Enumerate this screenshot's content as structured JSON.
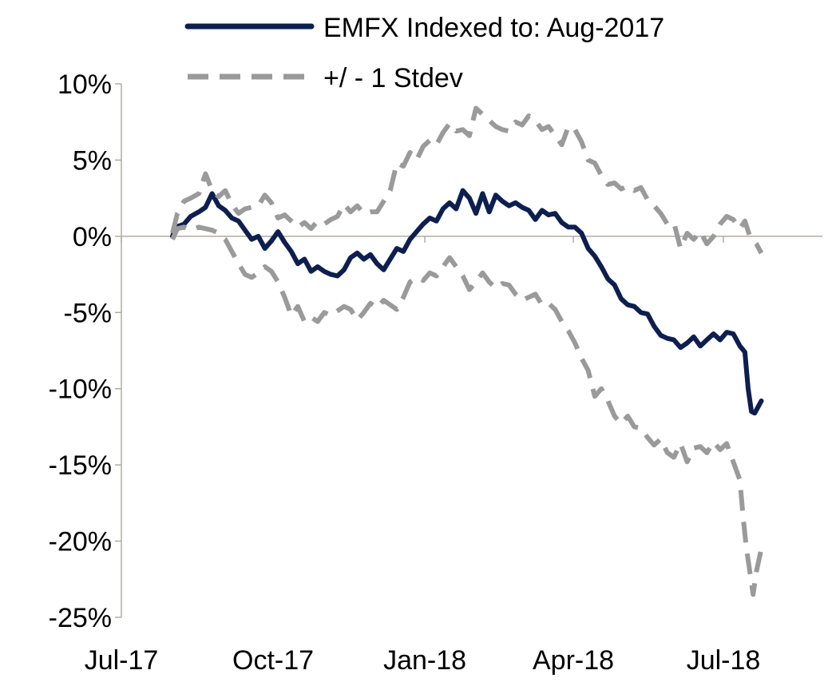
{
  "chart_data": {
    "type": "line",
    "title": "",
    "xlabel": "",
    "ylabel": "",
    "x_ticks": [
      "Jul-17",
      "Oct-17",
      "Jan-18",
      "Apr-18",
      "Jul-18"
    ],
    "y_ticks": [
      "10%",
      "5%",
      "0%",
      "-5%",
      "-10%",
      "-15%",
      "-20%",
      "-25%"
    ],
    "ylim": [
      -25,
      10
    ],
    "grid": false,
    "legend_position": "top",
    "series": [
      {
        "name": "EMFX Indexed to: Aug-2017",
        "style": "solid",
        "color": "#0d1f4f",
        "unit": "percent",
        "points": [
          [
            "2017-08-01",
            0.0
          ],
          [
            "2017-08-03",
            0.6
          ],
          [
            "2017-08-08",
            0.8
          ],
          [
            "2017-08-12",
            1.3
          ],
          [
            "2017-08-17",
            1.6
          ],
          [
            "2017-08-21",
            1.9
          ],
          [
            "2017-08-25",
            2.8
          ],
          [
            "2017-08-29",
            2.0
          ],
          [
            "2017-09-02",
            1.7
          ],
          [
            "2017-09-06",
            1.2
          ],
          [
            "2017-09-10",
            1.0
          ],
          [
            "2017-09-14",
            0.4
          ],
          [
            "2017-09-18",
            -0.2
          ],
          [
            "2017-09-22",
            0.0
          ],
          [
            "2017-09-26",
            -0.8
          ],
          [
            "2017-09-30",
            -0.3
          ],
          [
            "2017-10-04",
            0.3
          ],
          [
            "2017-10-08",
            -0.4
          ],
          [
            "2017-10-12",
            -1.0
          ],
          [
            "2017-10-16",
            -1.8
          ],
          [
            "2017-10-20",
            -1.5
          ],
          [
            "2017-10-24",
            -2.3
          ],
          [
            "2017-10-28",
            -2.0
          ],
          [
            "2017-11-01",
            -2.3
          ],
          [
            "2017-11-05",
            -2.5
          ],
          [
            "2017-11-09",
            -2.6
          ],
          [
            "2017-11-13",
            -2.2
          ],
          [
            "2017-11-17",
            -1.4
          ],
          [
            "2017-11-21",
            -1.1
          ],
          [
            "2017-11-25",
            -1.5
          ],
          [
            "2017-11-29",
            -1.2
          ],
          [
            "2017-12-03",
            -1.8
          ],
          [
            "2017-12-07",
            -2.2
          ],
          [
            "2017-12-11",
            -1.5
          ],
          [
            "2017-12-15",
            -0.8
          ],
          [
            "2017-12-19",
            -1.0
          ],
          [
            "2017-12-23",
            -0.2
          ],
          [
            "2017-12-27",
            0.3
          ],
          [
            "2017-12-31",
            0.8
          ],
          [
            "2018-01-04",
            1.2
          ],
          [
            "2018-01-08",
            1.0
          ],
          [
            "2018-01-12",
            1.8
          ],
          [
            "2018-01-16",
            2.2
          ],
          [
            "2018-01-20",
            1.8
          ],
          [
            "2018-01-24",
            3.0
          ],
          [
            "2018-01-28",
            2.5
          ],
          [
            "2018-02-01",
            1.5
          ],
          [
            "2018-02-05",
            2.8
          ],
          [
            "2018-02-09",
            1.6
          ],
          [
            "2018-02-13",
            2.7
          ],
          [
            "2018-02-17",
            2.3
          ],
          [
            "2018-02-21",
            2.0
          ],
          [
            "2018-02-25",
            2.2
          ],
          [
            "2018-03-01",
            1.9
          ],
          [
            "2018-03-05",
            1.7
          ],
          [
            "2018-03-09",
            1.1
          ],
          [
            "2018-03-13",
            1.7
          ],
          [
            "2018-03-17",
            1.4
          ],
          [
            "2018-03-21",
            1.5
          ],
          [
            "2018-03-25",
            0.9
          ],
          [
            "2018-03-29",
            0.6
          ],
          [
            "2018-04-02",
            0.6
          ],
          [
            "2018-04-06",
            0.2
          ],
          [
            "2018-04-10",
            -0.8
          ],
          [
            "2018-04-14",
            -1.3
          ],
          [
            "2018-04-18",
            -2.0
          ],
          [
            "2018-04-22",
            -2.8
          ],
          [
            "2018-04-26",
            -3.2
          ],
          [
            "2018-04-30",
            -4.1
          ],
          [
            "2018-05-04",
            -4.5
          ],
          [
            "2018-05-08",
            -4.6
          ],
          [
            "2018-05-12",
            -5.0
          ],
          [
            "2018-05-16",
            -5.1
          ],
          [
            "2018-05-20",
            -5.9
          ],
          [
            "2018-05-24",
            -6.5
          ],
          [
            "2018-05-28",
            -6.7
          ],
          [
            "2018-06-01",
            -6.8
          ],
          [
            "2018-06-05",
            -7.3
          ],
          [
            "2018-06-09",
            -7.0
          ],
          [
            "2018-06-13",
            -6.6
          ],
          [
            "2018-06-17",
            -7.2
          ],
          [
            "2018-06-21",
            -6.8
          ],
          [
            "2018-06-25",
            -6.4
          ],
          [
            "2018-06-29",
            -6.8
          ],
          [
            "2018-07-03",
            -6.3
          ],
          [
            "2018-07-07",
            -6.4
          ],
          [
            "2018-07-11",
            -7.2
          ],
          [
            "2018-07-14",
            -7.6
          ],
          [
            "2018-07-16",
            -10.0
          ],
          [
            "2018-07-18",
            -11.5
          ],
          [
            "2018-07-20",
            -11.6
          ],
          [
            "2018-07-22",
            -11.2
          ],
          [
            "2018-07-24",
            -10.8
          ]
        ]
      },
      {
        "name": "+/ - 1 Stdev",
        "style": "dashed",
        "color": "#9a9a9a",
        "unit": "percent",
        "points": [
          [
            "2017-08-01",
            0.2
          ],
          [
            "2017-08-04",
            1.5
          ],
          [
            "2017-08-08",
            2.3
          ],
          [
            "2017-08-12",
            2.5
          ],
          [
            "2017-08-17",
            2.8
          ],
          [
            "2017-08-21",
            4.1
          ],
          [
            "2017-08-25",
            3.0
          ],
          [
            "2017-08-29",
            2.6
          ],
          [
            "2017-09-02",
            3.0
          ],
          [
            "2017-09-06",
            2.1
          ],
          [
            "2017-09-10",
            1.5
          ],
          [
            "2017-09-14",
            1.8
          ],
          [
            "2017-09-18",
            1.9
          ],
          [
            "2017-09-22",
            2.0
          ],
          [
            "2017-09-26",
            2.7
          ],
          [
            "2017-09-30",
            2.2
          ],
          [
            "2017-10-04",
            1.2
          ],
          [
            "2017-10-08",
            1.4
          ],
          [
            "2017-10-12",
            1.0
          ],
          [
            "2017-10-16",
            0.6
          ],
          [
            "2017-10-20",
            0.9
          ],
          [
            "2017-10-24",
            0.5
          ],
          [
            "2017-10-28",
            1.0
          ],
          [
            "2017-11-01",
            0.8
          ],
          [
            "2017-11-05",
            1.1
          ],
          [
            "2017-11-09",
            1.3
          ],
          [
            "2017-11-13",
            2.1
          ],
          [
            "2017-11-17",
            1.6
          ],
          [
            "2017-11-21",
            2.0
          ],
          [
            "2017-11-25",
            1.5
          ],
          [
            "2017-11-29",
            1.6
          ],
          [
            "2017-12-03",
            1.6
          ],
          [
            "2017-12-07",
            2.3
          ],
          [
            "2017-12-11",
            3.0
          ],
          [
            "2017-12-15",
            4.8
          ],
          [
            "2017-12-19",
            4.6
          ],
          [
            "2017-12-23",
            5.5
          ],
          [
            "2017-12-27",
            5.0
          ],
          [
            "2017-12-31",
            5.9
          ],
          [
            "2018-01-04",
            6.3
          ],
          [
            "2018-01-08",
            6.0
          ],
          [
            "2018-01-12",
            6.8
          ],
          [
            "2018-01-16",
            7.4
          ],
          [
            "2018-01-20",
            6.9
          ],
          [
            "2018-01-24",
            7.0
          ],
          [
            "2018-01-28",
            6.6
          ],
          [
            "2018-02-01",
            8.4
          ],
          [
            "2018-02-05",
            8.0
          ],
          [
            "2018-02-09",
            7.6
          ],
          [
            "2018-02-13",
            7.2
          ],
          [
            "2018-02-17",
            7.0
          ],
          [
            "2018-02-21",
            6.9
          ],
          [
            "2018-02-25",
            7.5
          ],
          [
            "2018-03-01",
            7.3
          ],
          [
            "2018-03-05",
            7.9
          ],
          [
            "2018-03-09",
            7.6
          ],
          [
            "2018-03-13",
            7.0
          ],
          [
            "2018-03-17",
            7.2
          ],
          [
            "2018-03-21",
            6.6
          ],
          [
            "2018-03-25",
            6.0
          ],
          [
            "2018-03-29",
            7.2
          ],
          [
            "2018-04-02",
            7.0
          ],
          [
            "2018-04-06",
            6.2
          ],
          [
            "2018-04-10",
            5.0
          ],
          [
            "2018-04-14",
            4.8
          ],
          [
            "2018-04-18",
            4.0
          ],
          [
            "2018-04-22",
            3.4
          ],
          [
            "2018-04-26",
            3.5
          ],
          [
            "2018-04-30",
            3.1
          ],
          [
            "2018-05-04",
            3.3
          ],
          [
            "2018-05-08",
            3.0
          ],
          [
            "2018-05-12",
            3.2
          ],
          [
            "2018-05-16",
            2.4
          ],
          [
            "2018-05-20",
            2.0
          ],
          [
            "2018-05-24",
            1.5
          ],
          [
            "2018-05-28",
            0.8
          ],
          [
            "2018-06-01",
            0.9
          ],
          [
            "2018-06-05",
            -0.8
          ],
          [
            "2018-06-09",
            0.2
          ],
          [
            "2018-06-13",
            -0.2
          ],
          [
            "2018-06-17",
            0.3
          ],
          [
            "2018-06-21",
            -0.5
          ],
          [
            "2018-06-25",
            0.0
          ],
          [
            "2018-06-29",
            0.8
          ],
          [
            "2018-07-03",
            1.3
          ],
          [
            "2018-07-07",
            1.1
          ],
          [
            "2018-07-11",
            0.5
          ],
          [
            "2018-07-14",
            1.0
          ],
          [
            "2018-07-17",
            0.0
          ],
          [
            "2018-07-21",
            -0.5
          ],
          [
            "2018-07-24",
            -1.1
          ]
        ]
      },
      {
        "name": "",
        "style": "dashed",
        "color": "#9a9a9a",
        "unit": "percent",
        "points": [
          [
            "2017-08-01",
            -0.2
          ],
          [
            "2017-08-04",
            0.5
          ],
          [
            "2017-08-08",
            0.6
          ],
          [
            "2017-08-12",
            0.4
          ],
          [
            "2017-08-17",
            0.6
          ],
          [
            "2017-08-21",
            0.5
          ],
          [
            "2017-08-25",
            0.4
          ],
          [
            "2017-08-29",
            0.2
          ],
          [
            "2017-09-02",
            -0.2
          ],
          [
            "2017-09-06",
            -1.0
          ],
          [
            "2017-09-10",
            -1.8
          ],
          [
            "2017-09-14",
            -2.5
          ],
          [
            "2017-09-18",
            -2.7
          ],
          [
            "2017-09-22",
            -2.4
          ],
          [
            "2017-09-26",
            -2.0
          ],
          [
            "2017-09-30",
            -2.3
          ],
          [
            "2017-10-04",
            -3.0
          ],
          [
            "2017-10-08",
            -4.0
          ],
          [
            "2017-10-12",
            -5.2
          ],
          [
            "2017-10-16",
            -4.6
          ],
          [
            "2017-10-20",
            -5.6
          ],
          [
            "2017-10-24",
            -5.3
          ],
          [
            "2017-10-28",
            -5.6
          ],
          [
            "2017-11-01",
            -5.0
          ],
          [
            "2017-11-05",
            -5.2
          ],
          [
            "2017-11-09",
            -4.9
          ],
          [
            "2017-11-13",
            -4.6
          ],
          [
            "2017-11-17",
            -4.8
          ],
          [
            "2017-11-21",
            -5.5
          ],
          [
            "2017-11-25",
            -5.0
          ],
          [
            "2017-11-29",
            -4.4
          ],
          [
            "2017-12-03",
            -4.7
          ],
          [
            "2017-12-07",
            -4.2
          ],
          [
            "2017-12-11",
            -4.5
          ],
          [
            "2017-12-15",
            -4.8
          ],
          [
            "2017-12-19",
            -4.0
          ],
          [
            "2017-12-23",
            -3.0
          ],
          [
            "2017-12-27",
            -2.7
          ],
          [
            "2017-12-31",
            -2.9
          ],
          [
            "2018-01-04",
            -2.4
          ],
          [
            "2018-01-08",
            -2.6
          ],
          [
            "2018-01-12",
            -2.0
          ],
          [
            "2018-01-16",
            -1.4
          ],
          [
            "2018-01-20",
            -2.0
          ],
          [
            "2018-01-24",
            -2.6
          ],
          [
            "2018-01-28",
            -3.5
          ],
          [
            "2018-02-01",
            -3.0
          ],
          [
            "2018-02-05",
            -2.4
          ],
          [
            "2018-02-09",
            -3.0
          ],
          [
            "2018-02-13",
            -3.4
          ],
          [
            "2018-02-17",
            -3.1
          ],
          [
            "2018-02-21",
            -3.2
          ],
          [
            "2018-02-25",
            -3.8
          ],
          [
            "2018-03-01",
            -4.2
          ],
          [
            "2018-03-05",
            -4.0
          ],
          [
            "2018-03-09",
            -3.8
          ],
          [
            "2018-03-13",
            -4.5
          ],
          [
            "2018-03-17",
            -4.4
          ],
          [
            "2018-03-21",
            -4.8
          ],
          [
            "2018-03-25",
            -5.6
          ],
          [
            "2018-03-29",
            -6.2
          ],
          [
            "2018-04-02",
            -7.0
          ],
          [
            "2018-04-06",
            -8.0
          ],
          [
            "2018-04-10",
            -8.8
          ],
          [
            "2018-04-14",
            -10.5
          ],
          [
            "2018-04-18",
            -10.0
          ],
          [
            "2018-04-22",
            -10.8
          ],
          [
            "2018-04-26",
            -11.8
          ],
          [
            "2018-04-30",
            -12.3
          ],
          [
            "2018-05-04",
            -11.8
          ],
          [
            "2018-05-08",
            -12.5
          ],
          [
            "2018-05-12",
            -12.6
          ],
          [
            "2018-05-16",
            -13.2
          ],
          [
            "2018-05-20",
            -13.7
          ],
          [
            "2018-05-24",
            -13.3
          ],
          [
            "2018-05-28",
            -14.2
          ],
          [
            "2018-06-01",
            -14.5
          ],
          [
            "2018-06-05",
            -13.6
          ],
          [
            "2018-06-09",
            -14.8
          ],
          [
            "2018-06-13",
            -13.9
          ],
          [
            "2018-06-17",
            -13.8
          ],
          [
            "2018-06-21",
            -14.2
          ],
          [
            "2018-06-25",
            -13.5
          ],
          [
            "2018-06-29",
            -14.0
          ],
          [
            "2018-07-03",
            -13.6
          ],
          [
            "2018-07-07",
            -14.8
          ],
          [
            "2018-07-11",
            -16.0
          ],
          [
            "2018-07-13",
            -18.5
          ],
          [
            "2018-07-15",
            -20.5
          ],
          [
            "2018-07-17",
            -22.0
          ],
          [
            "2018-07-19",
            -23.5
          ],
          [
            "2018-07-21",
            -22.0
          ],
          [
            "2018-07-24",
            -20.5
          ]
        ]
      }
    ]
  }
}
